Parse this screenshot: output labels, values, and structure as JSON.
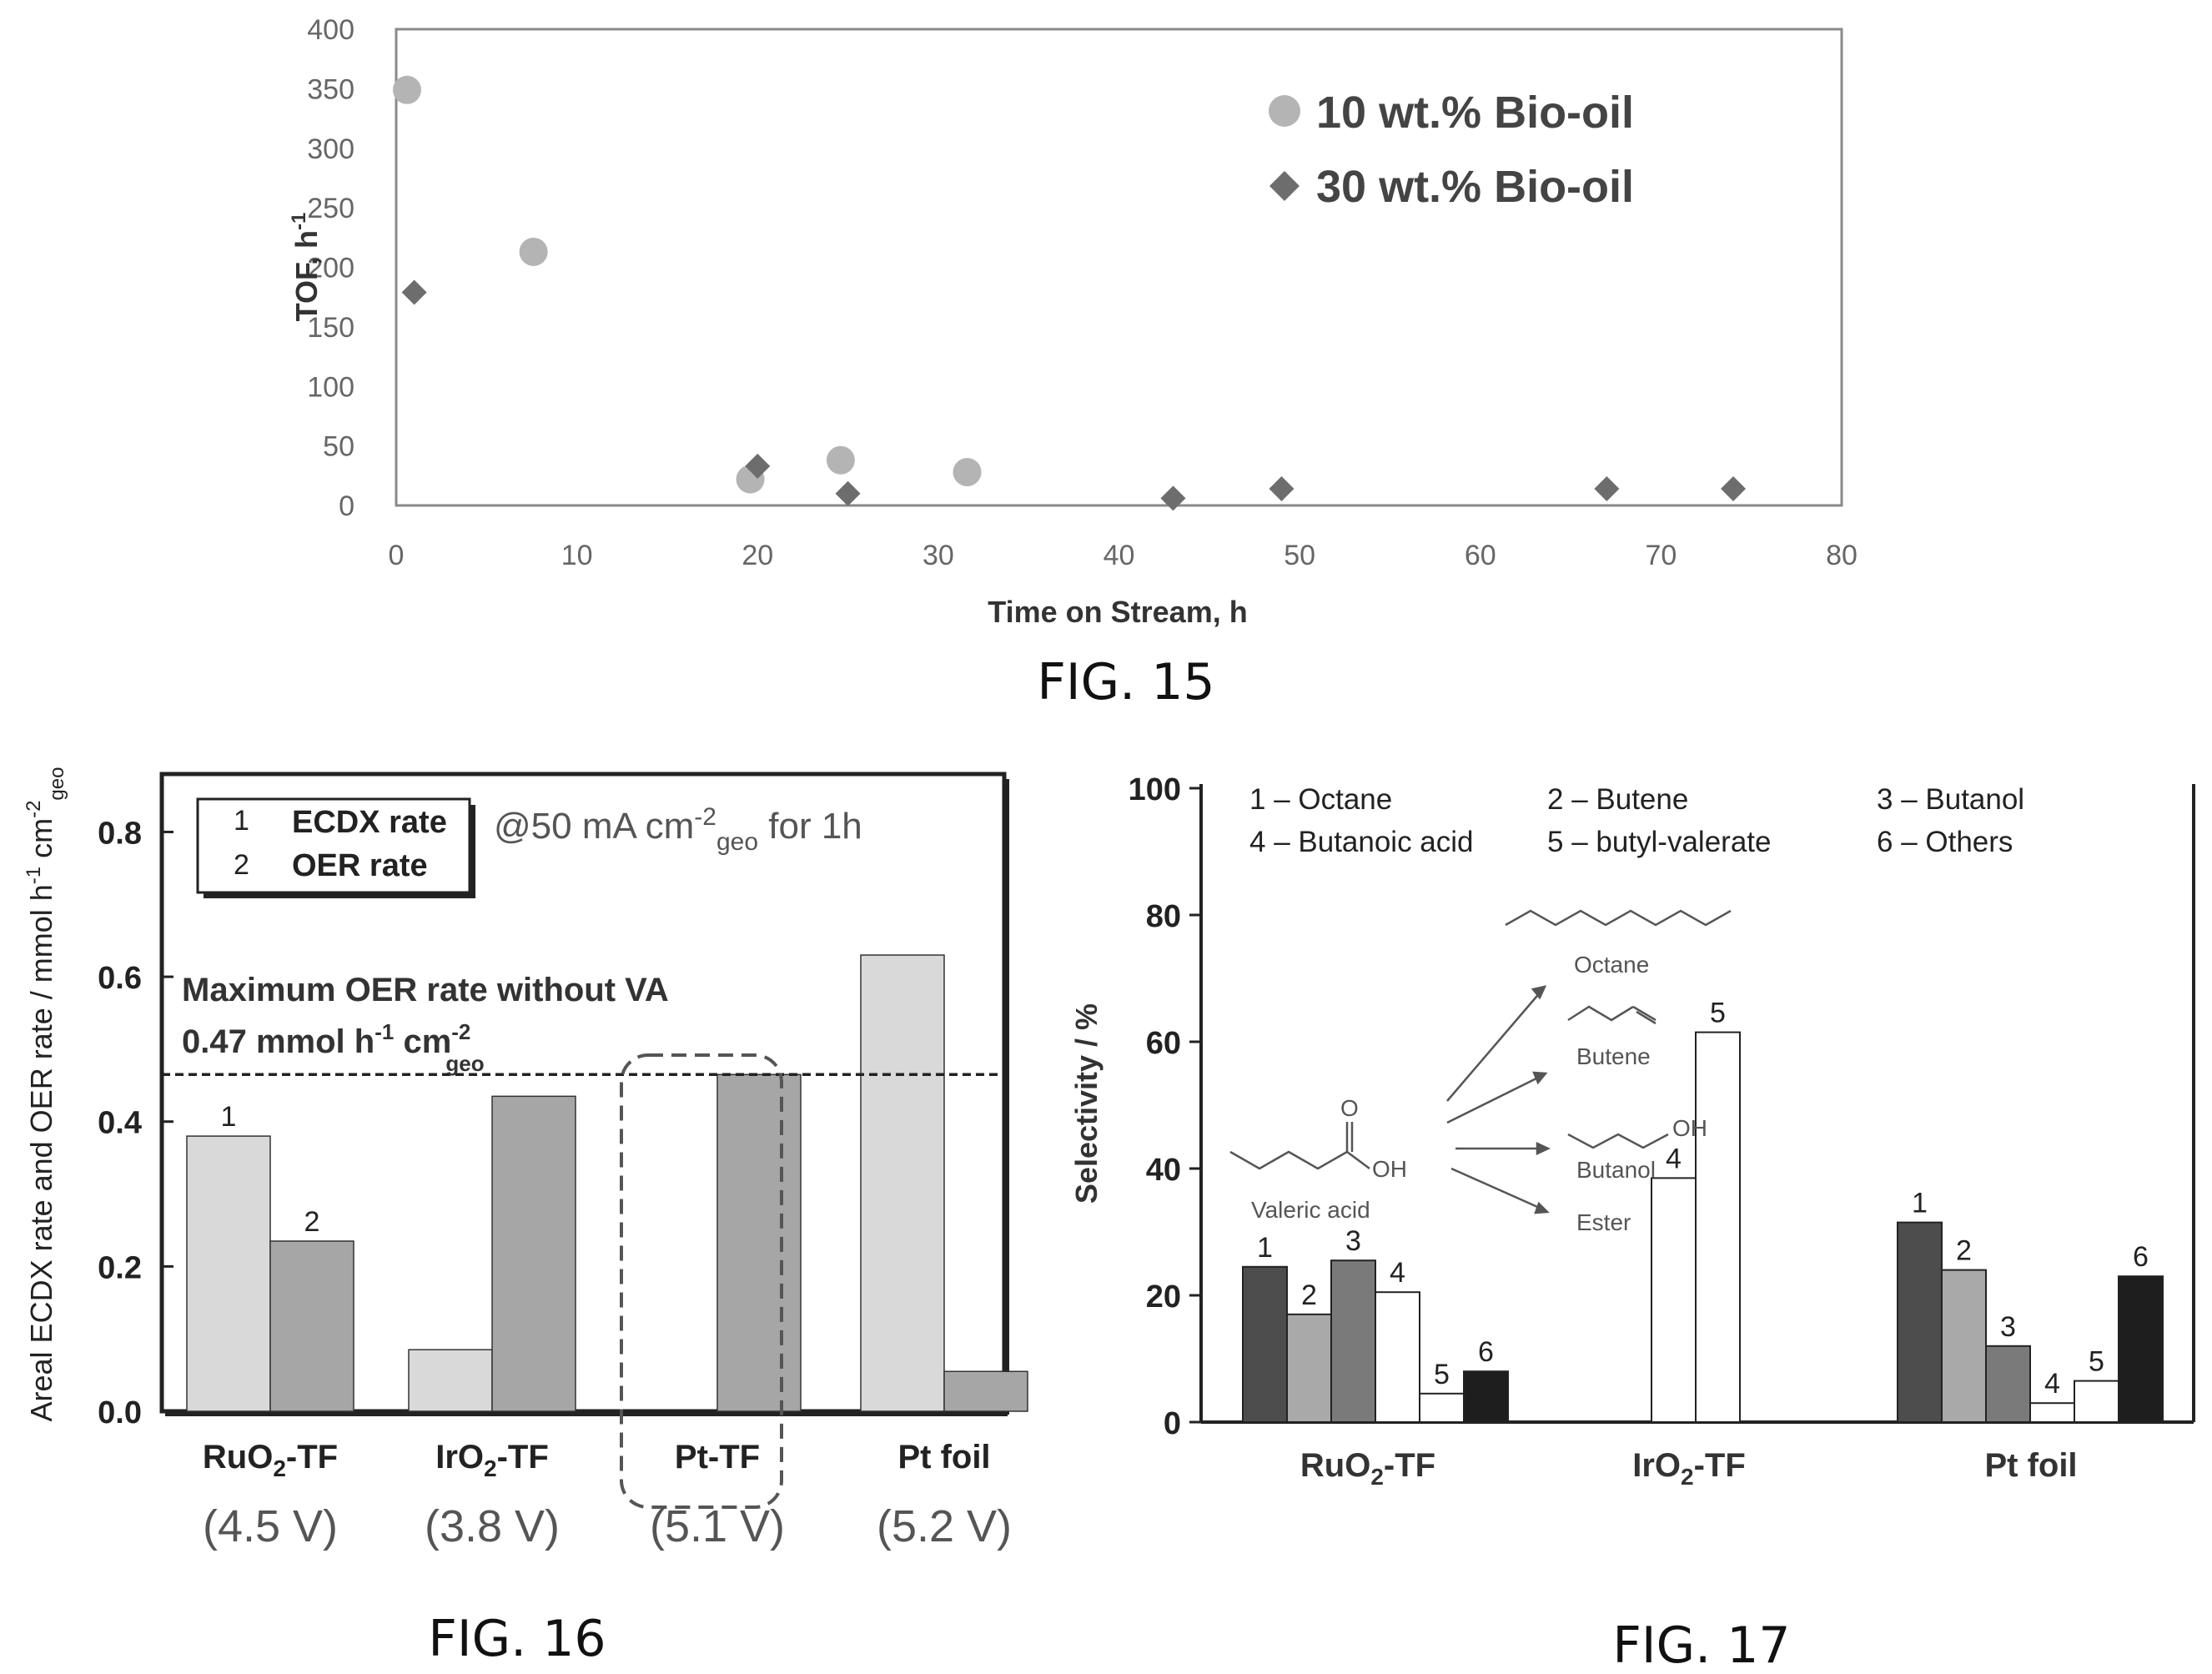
{
  "chart_data": [
    {
      "id": "fig15",
      "type": "scatter",
      "caption": "FIG. 15",
      "xlabel": "Time on Stream, h",
      "ylabel_main": "TOF, h",
      "ylabel_sup": "-1",
      "xlim": [
        0,
        80
      ],
      "ylim": [
        0,
        400
      ],
      "x_ticks": [
        "0",
        "10",
        "20",
        "30",
        "40",
        "50",
        "60",
        "70",
        "80"
      ],
      "y_ticks": [
        "0",
        "50",
        "100",
        "150",
        "200",
        "250",
        "300",
        "350",
        "400"
      ],
      "grid": false,
      "legend_position": "top-right",
      "series": [
        {
          "name": "10 wt.% Bio-oil",
          "marker": "circle",
          "color": "#b4b4b4",
          "points": [
            [
              0.6,
              349
            ],
            [
              7.6,
              213
            ],
            [
              19.6,
              22
            ],
            [
              24.6,
              38
            ],
            [
              31.6,
              28
            ]
          ]
        },
        {
          "name": "30 wt.% Bio-oil",
          "marker": "diamond",
          "color": "#6d6d6d",
          "points": [
            [
              1,
              179
            ],
            [
              20,
              33
            ],
            [
              25,
              10
            ],
            [
              43,
              6
            ],
            [
              49,
              14
            ],
            [
              67,
              14
            ],
            [
              74,
              14
            ]
          ]
        }
      ]
    },
    {
      "id": "fig16",
      "type": "bar",
      "caption": "FIG. 16",
      "ylabel": "Areal ECDX rate and OER rate / mmol h",
      "ylabel_sup1": "-1",
      "ylabel_mid": " cm",
      "ylabel_sup2": "-2",
      "ylabel_sub": "geo",
      "ylim": [
        0,
        0.88
      ],
      "y_ticks": [
        "0.0",
        "0.2",
        "0.4",
        "0.6",
        "0.8"
      ],
      "categories": [
        "RuO2-TF",
        "IrO2-TF",
        "Pt-TF",
        "Pt foil"
      ],
      "category_labels": [
        {
          "main": "RuO",
          "sub": "2",
          "rest": "-TF"
        },
        {
          "main": "IrO",
          "sub": "2",
          "rest": "-TF"
        },
        {
          "main": "Pt-TF",
          "sub": "",
          "rest": ""
        },
        {
          "main": "Pt foil",
          "sub": "",
          "rest": ""
        }
      ],
      "voltages": [
        "(4.5 V)",
        "(3.8 V)",
        "(5.1 V)",
        "(5.2 V)"
      ],
      "series": [
        {
          "name": "ECDX rate",
          "legend_number": "1",
          "color": "#d9d9d9",
          "values": [
            0.38,
            0.085,
            0.0,
            0.63
          ]
        },
        {
          "name": "OER rate",
          "legend_number": "2",
          "color": "#a6a6a6",
          "values": [
            0.235,
            0.435,
            0.465,
            0.055
          ]
        }
      ],
      "bar_number_labels": [
        {
          "category": 0,
          "series": 0,
          "text": "1"
        },
        {
          "category": 0,
          "series": 1,
          "text": "2"
        }
      ],
      "condition_text": {
        "prefix": "@50 mA cm",
        "sup": "-2",
        "sub": "geo",
        "suffix": " for 1h"
      },
      "reference_line": {
        "value": 0.465,
        "label_line1": "Maximum OER rate without VA",
        "label_line2": {
          "prefix": "0.47 mmol h",
          "sup1": "-1",
          "mid": " cm",
          "sup2": "-2",
          "sub": "geo"
        }
      },
      "highlight_category": "Pt-TF"
    },
    {
      "id": "fig17",
      "type": "bar",
      "caption": "FIG. 17",
      "ylabel": "Selectivity / %",
      "ylim": [
        0,
        100
      ],
      "y_ticks": [
        "0",
        "20",
        "40",
        "60",
        "80",
        "100"
      ],
      "categories": [
        "RuO2-TF",
        "IrO2-TF",
        "Pt foil"
      ],
      "category_labels": [
        {
          "main": "RuO",
          "sub": "2",
          "rest": "-TF"
        },
        {
          "main": "IrO",
          "sub": "2",
          "rest": "-TF"
        },
        {
          "main": "Pt foil",
          "sub": "",
          "rest": ""
        }
      ],
      "legend_text": [
        "1 – Octane",
        "2 – Butene",
        "3 – Butanol",
        "4 – Butanoic acid",
        "5 – butyl-valerate",
        "6 – Others"
      ],
      "series": [
        {
          "number": "1",
          "name": "Octane",
          "color": "#4d4d4d",
          "values": [
            24.5,
            0,
            31.5
          ]
        },
        {
          "number": "2",
          "name": "Butene",
          "color": "#a9a9a9",
          "values": [
            17,
            0,
            24
          ]
        },
        {
          "number": "3",
          "name": "Butanol",
          "color": "#7a7a7a",
          "values": [
            25.5,
            0,
            12
          ]
        },
        {
          "number": "4",
          "name": "Butanoic acid",
          "color": "#ffffff",
          "values": [
            20.5,
            38.5,
            3
          ]
        },
        {
          "number": "5",
          "name": "butyl-valerate",
          "color": "#ffffff",
          "values": [
            4.5,
            61.5,
            6.5
          ]
        },
        {
          "number": "6",
          "name": "Others",
          "color": "#1e1e1e",
          "values": [
            8,
            0,
            23
          ]
        }
      ],
      "scheme": {
        "reactant": "Valeric acid",
        "reactant_atoms": [
          "O",
          "OH"
        ],
        "products": [
          "Octane",
          "Butene",
          "Butanol",
          "Ester"
        ],
        "butanol_atom": "OH"
      }
    }
  ]
}
